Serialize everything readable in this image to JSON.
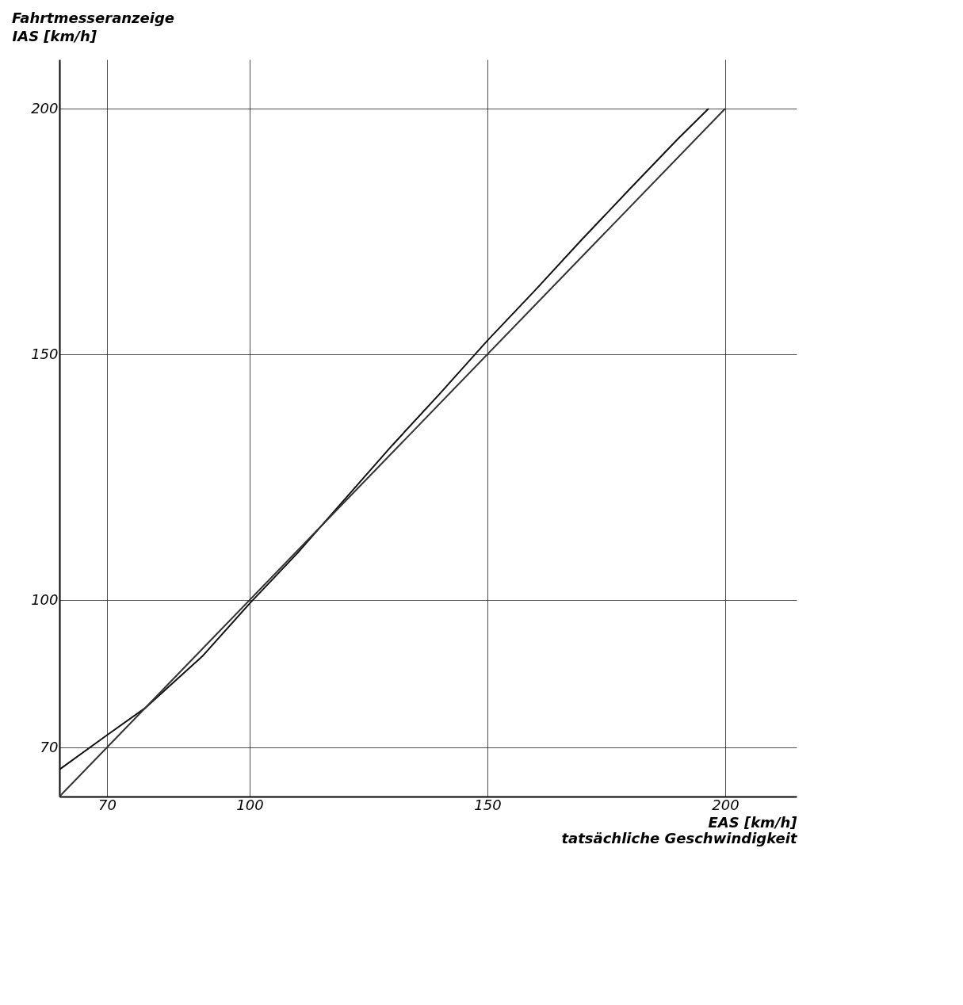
{
  "chart_data": {
    "type": "line",
    "title": "Fahrtmesseranzeige",
    "xlabel": "EAS [km/h]",
    "ylabel": "IAS [km/h]",
    "annotations": [
      "tatsächliche Geschwindigkeit"
    ],
    "xlim": [
      60,
      215
    ],
    "ylim": [
      60,
      210
    ],
    "xticks": [
      70,
      100,
      150,
      200
    ],
    "yticks": [
      70,
      100,
      150,
      200
    ],
    "grid": true,
    "line_style": "solid",
    "marker": "none",
    "series": [
      {
        "color": "#111111",
        "x": [
          60,
          70,
          78,
          90,
          100,
          110,
          120,
          130,
          140,
          150,
          160,
          170,
          180,
          190,
          196.5
        ],
        "values": [
          65.5,
          72.5,
          78,
          88.5,
          99.3,
          109.5,
          120.5,
          131.5,
          142,
          152.8,
          163,
          173.5,
          183.7,
          193.8,
          200
        ]
      },
      {
        "color": "#333333",
        "x": [
          60,
          200
        ],
        "values": [
          60,
          200
        ]
      }
    ]
  }
}
